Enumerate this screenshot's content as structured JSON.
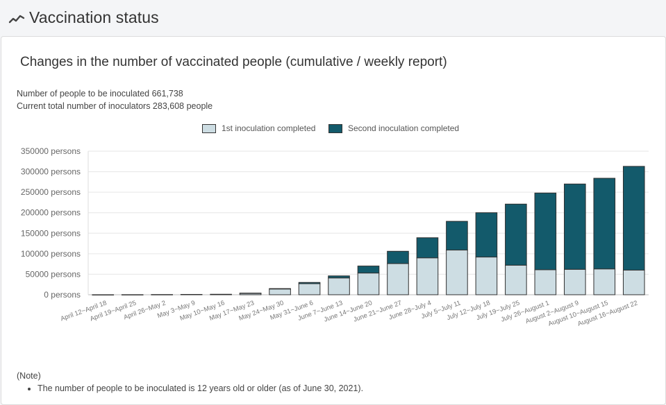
{
  "page": {
    "title": "Vaccination status",
    "icon": "trend-line-icon"
  },
  "card": {
    "title": "Changes in the number of vaccinated people (cumulative / weekly report)",
    "summary_line1": "Number of people to be inoculated 661,738",
    "summary_line2": "Current total number of inoculators 283,608 people",
    "note_heading": "(Note)",
    "note_item": "The number of people to be inoculated is 12 years old or older (as of June 30, 2021)."
  },
  "colors": {
    "first": "#cddde3",
    "second": "#135a6b",
    "outline": "#2f2f2f"
  },
  "chart_data": {
    "type": "bar",
    "stacked": true,
    "legend_position": "top",
    "grid": true,
    "ylim": [
      0,
      350000
    ],
    "yticks": [
      0,
      50000,
      100000,
      150000,
      200000,
      250000,
      300000,
      350000
    ],
    "ytick_labels": [
      "0 persons",
      "50000 persons",
      "100000 persons",
      "150000 persons",
      "200000 persons",
      "250000 persons",
      "300000 persons",
      "350000 persons"
    ],
    "categories": [
      "April 12~April 18",
      "April 19~April 25",
      "April 26~May 2",
      "May 3~May 9",
      "May 10~May 16",
      "May 17~May 23",
      "May 24~May 30",
      "May 31~June 6",
      "June 7~June 13",
      "June 14~June 20",
      "June 21~June 27",
      "June 28~July 4",
      "July 5~July 11",
      "July 12~July 18",
      "July 19~July 25",
      "July 26~August 1",
      "August 2~August 9",
      "August 10~August 15",
      "August 16~August 22"
    ],
    "series": [
      {
        "name": "1st inoculation completed",
        "values": [
          50,
          200,
          500,
          800,
          1200,
          3500,
          14000,
          27000,
          41000,
          53000,
          76000,
          90000,
          109000,
          92000,
          72000,
          61000,
          62000,
          63000,
          60000
        ]
      },
      {
        "name": "Second inoculation completed",
        "values": [
          0,
          0,
          0,
          0,
          0,
          500,
          1000,
          3000,
          5000,
          17000,
          30000,
          49000,
          70000,
          108000,
          149000,
          187000,
          208000,
          221000,
          253000
        ]
      }
    ]
  }
}
